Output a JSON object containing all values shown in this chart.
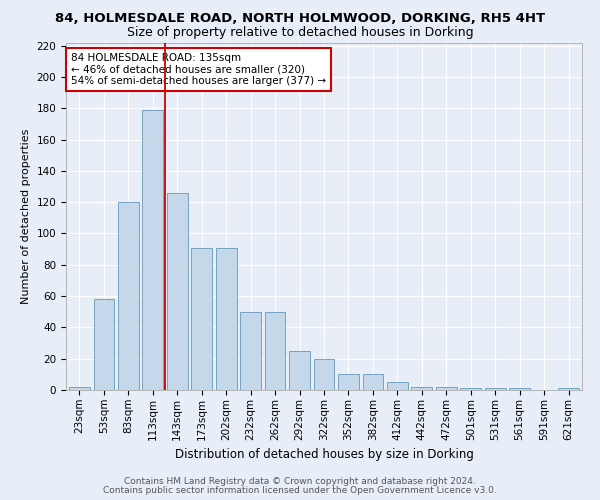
{
  "title1": "84, HOLMESDALE ROAD, NORTH HOLMWOOD, DORKING, RH5 4HT",
  "title2": "Size of property relative to detached houses in Dorking",
  "xlabel": "Distribution of detached houses by size in Dorking",
  "ylabel": "Number of detached properties",
  "bar_color": "#c5d8ea",
  "bar_edge_color": "#6699bb",
  "categories": [
    "23sqm",
    "53sqm",
    "83sqm",
    "113sqm",
    "143sqm",
    "173sqm",
    "202sqm",
    "232sqm",
    "262sqm",
    "292sqm",
    "322sqm",
    "352sqm",
    "382sqm",
    "412sqm",
    "442sqm",
    "472sqm",
    "501sqm",
    "531sqm",
    "561sqm",
    "591sqm",
    "621sqm"
  ],
  "values": [
    2,
    58,
    120,
    179,
    126,
    91,
    91,
    50,
    50,
    25,
    20,
    10,
    10,
    5,
    2,
    2,
    1,
    1,
    1,
    0,
    1
  ],
  "ylim": [
    0,
    222
  ],
  "yticks": [
    0,
    20,
    40,
    60,
    80,
    100,
    120,
    140,
    160,
    180,
    200,
    220
  ],
  "vline_x": 3.5,
  "vline_color": "#cc0000",
  "annotation_text": "84 HOLMESDALE ROAD: 135sqm\n← 46% of detached houses are smaller (320)\n54% of semi-detached houses are larger (377) →",
  "annotation_box_facecolor": "#ffffff",
  "annotation_box_edgecolor": "#cc0000",
  "footer1": "Contains HM Land Registry data © Crown copyright and database right 2024.",
  "footer2": "Contains public sector information licensed under the Open Government Licence v3.0.",
  "background_color": "#e8eef8",
  "plot_bg_color": "#e8eef8",
  "grid_color": "#ffffff",
  "title1_fontsize": 9.5,
  "title2_fontsize": 9,
  "xlabel_fontsize": 8.5,
  "ylabel_fontsize": 8,
  "tick_fontsize": 7.5,
  "annotation_fontsize": 7.5,
  "footer_fontsize": 6.5
}
